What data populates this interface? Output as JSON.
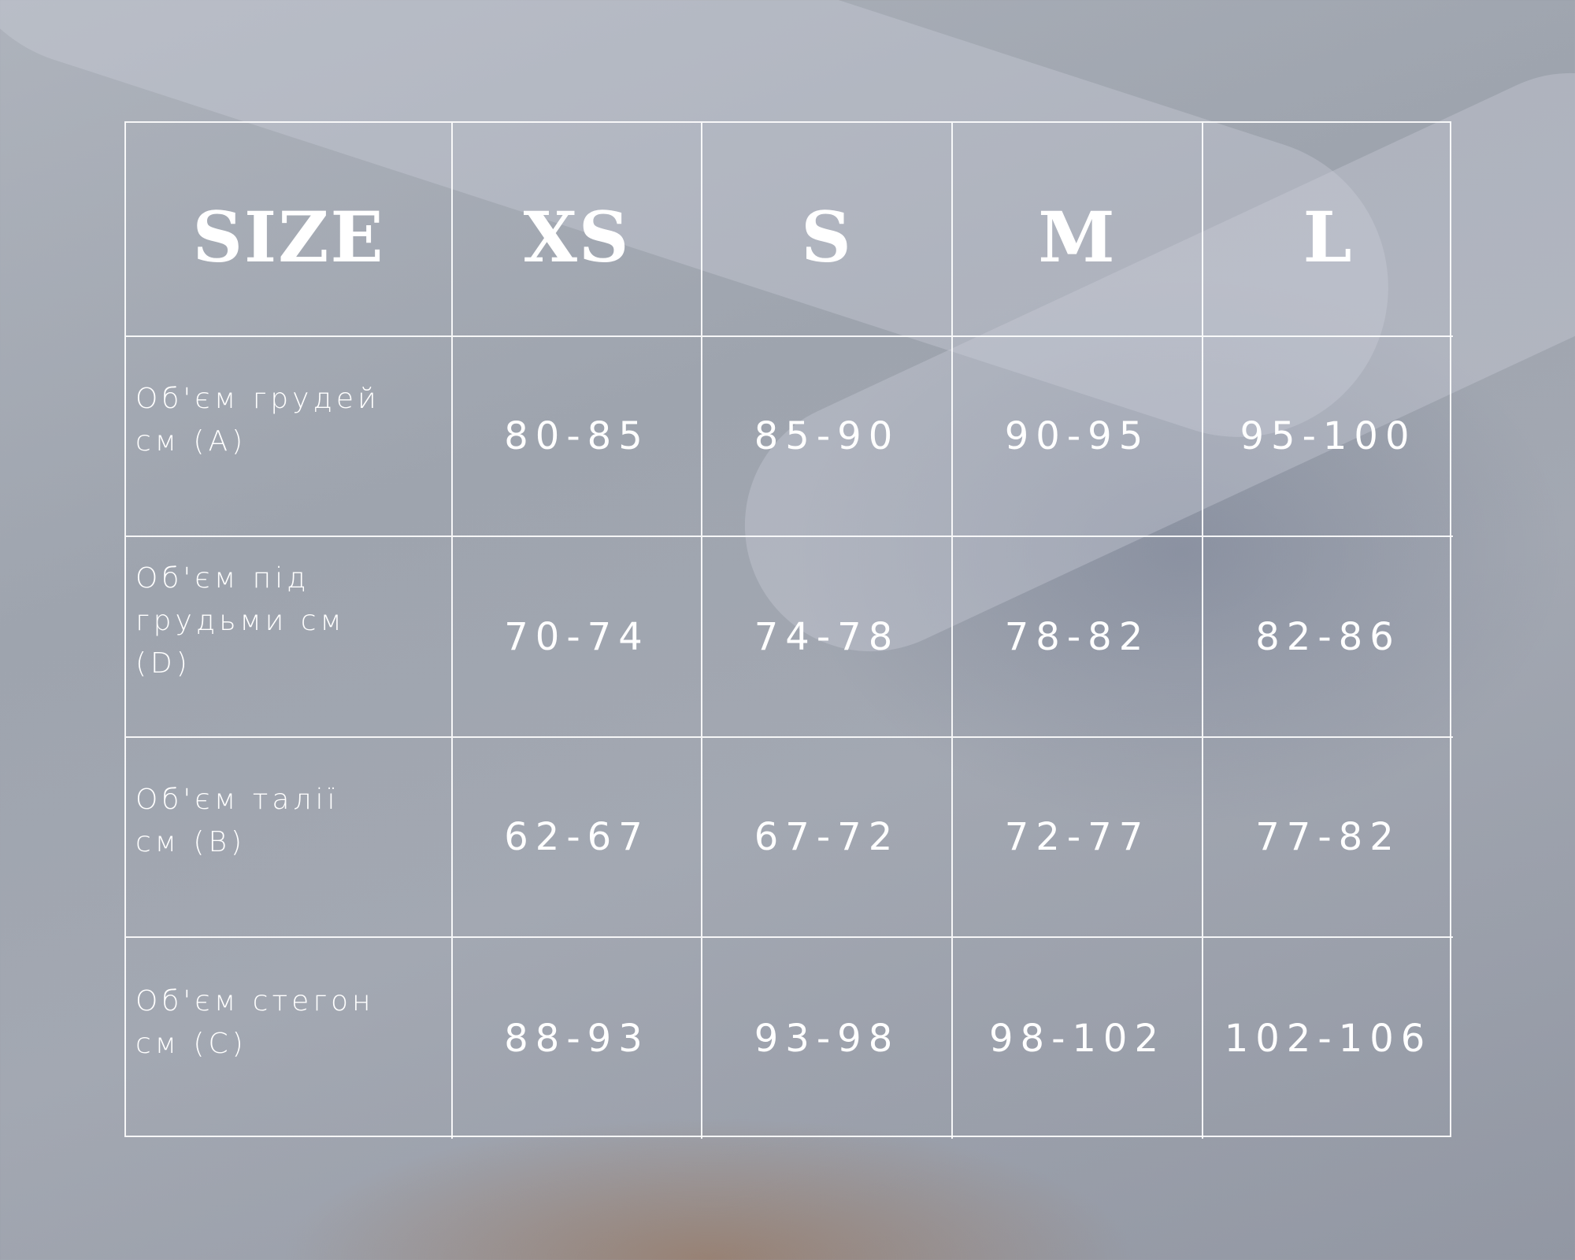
{
  "table": {
    "header": [
      "SIZE",
      "XS",
      "S",
      "M",
      "L"
    ],
    "rows": [
      {
        "label": "Об'єм грудей см (A)",
        "values": [
          "80-85",
          "85-90",
          "90-95",
          "95-100"
        ]
      },
      {
        "label": "Об'єм під грудьми см (D)",
        "values": [
          "70-74",
          "74-78",
          "78-82",
          "82-86"
        ]
      },
      {
        "label": "Об'єм талії см (B)",
        "values": [
          "62-67",
          "67-72",
          "72-77",
          "77-82"
        ]
      },
      {
        "label": "Об'єм стегон см (C)",
        "values": [
          "88-93",
          "93-98",
          "98-102",
          "102-106"
        ]
      }
    ]
  }
}
